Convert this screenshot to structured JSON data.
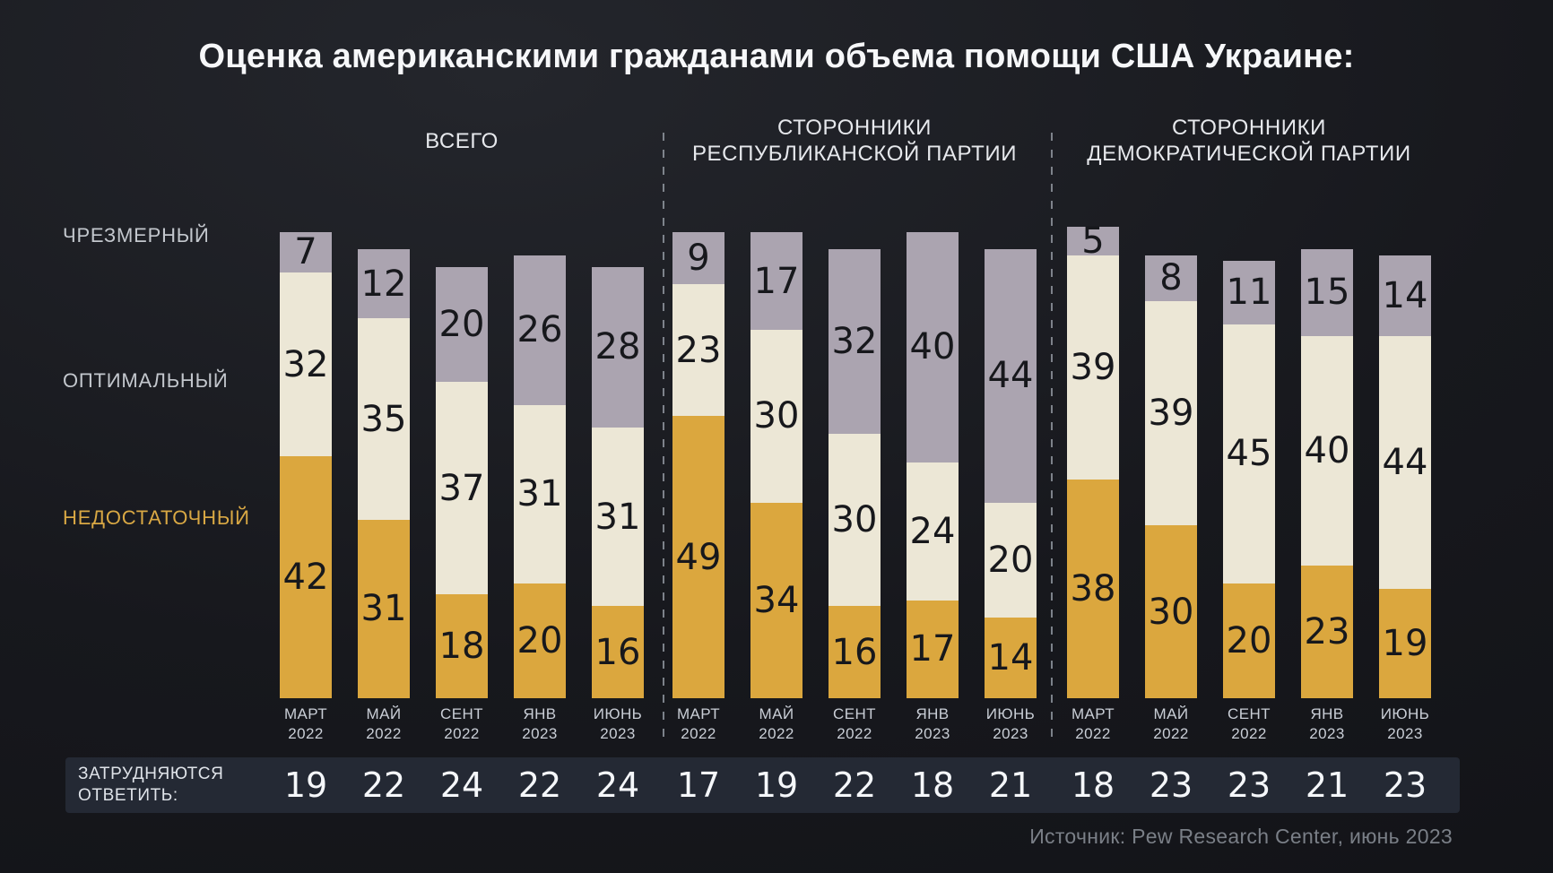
{
  "title": "Оценка американскими гражданами объема помощи США Украине:",
  "legend": {
    "excessive": "ЧРЕЗМЕРНЫЙ",
    "optimal": "ОПТИМАЛЬНЫЙ",
    "insufficient": "НЕДОСТАТОЧНЫЙ"
  },
  "bottom_row_label": {
    "line1": "ЗАТРУДНЯЮТСЯ",
    "line2": "ОТВЕТИТЬ:"
  },
  "source": "Источник: Pew Research Center, июнь 2023",
  "colors": {
    "excessive": "#aba4b0",
    "optimal": "#ece7d6",
    "insufficient": "#dba73e",
    "value_text": "#17181c",
    "background": "#17181d",
    "band_background": "#242934",
    "insufficient_label": "#d9a844"
  },
  "chart_data": {
    "type": "bar",
    "stacked": true,
    "unit": "percent",
    "series_order": [
      "excessive",
      "optimal",
      "insufficient"
    ],
    "groups": [
      {
        "label_lines": [
          "ВСЕГО"
        ],
        "columns": [
          {
            "month": "МАРТ",
            "year": "2022",
            "excessive": 7,
            "optimal": 32,
            "insufficient": 42,
            "no_answer": 19
          },
          {
            "month": "МАЙ",
            "year": "2022",
            "excessive": 12,
            "optimal": 35,
            "insufficient": 31,
            "no_answer": 22
          },
          {
            "month": "СЕНТ",
            "year": "2022",
            "excessive": 20,
            "optimal": 37,
            "insufficient": 18,
            "no_answer": 24
          },
          {
            "month": "ЯНВ",
            "year": "2023",
            "excessive": 26,
            "optimal": 31,
            "insufficient": 20,
            "no_answer": 22
          },
          {
            "month": "ИЮНЬ",
            "year": "2023",
            "excessive": 28,
            "optimal": 31,
            "insufficient": 16,
            "no_answer": 24
          }
        ]
      },
      {
        "label_lines": [
          "СТОРОННИКИ",
          "РЕСПУБЛИКАНСКОЙ ПАРТИИ"
        ],
        "columns": [
          {
            "month": "МАРТ",
            "year": "2022",
            "excessive": 9,
            "optimal": 23,
            "insufficient": 49,
            "no_answer": 17
          },
          {
            "month": "МАЙ",
            "year": "2022",
            "excessive": 17,
            "optimal": 30,
            "insufficient": 34,
            "no_answer": 19
          },
          {
            "month": "СЕНТ",
            "year": "2022",
            "excessive": 32,
            "optimal": 30,
            "insufficient": 16,
            "no_answer": 22
          },
          {
            "month": "ЯНВ",
            "year": "2023",
            "excessive": 40,
            "optimal": 24,
            "insufficient": 17,
            "no_answer": 18
          },
          {
            "month": "ИЮНЬ",
            "year": "2023",
            "excessive": 44,
            "optimal": 20,
            "insufficient": 14,
            "no_answer": 21
          }
        ]
      },
      {
        "label_lines": [
          "СТОРОННИКИ",
          "ДЕМОКРАТИЧЕСКОЙ ПАРТИИ"
        ],
        "columns": [
          {
            "month": "МАРТ",
            "year": "2022",
            "excessive": 5,
            "optimal": 39,
            "insufficient": 38,
            "no_answer": 18
          },
          {
            "month": "МАЙ",
            "year": "2022",
            "excessive": 8,
            "optimal": 39,
            "insufficient": 30,
            "no_answer": 23
          },
          {
            "month": "СЕНТ",
            "year": "2022",
            "excessive": 11,
            "optimal": 45,
            "insufficient": 20,
            "no_answer": 23
          },
          {
            "month": "ЯНВ",
            "year": "2023",
            "excessive": 15,
            "optimal": 40,
            "insufficient": 23,
            "no_answer": 21
          },
          {
            "month": "ИЮНЬ",
            "year": "2023",
            "excessive": 14,
            "optimal": 44,
            "insufficient": 19,
            "no_answer": 23
          }
        ]
      }
    ]
  }
}
